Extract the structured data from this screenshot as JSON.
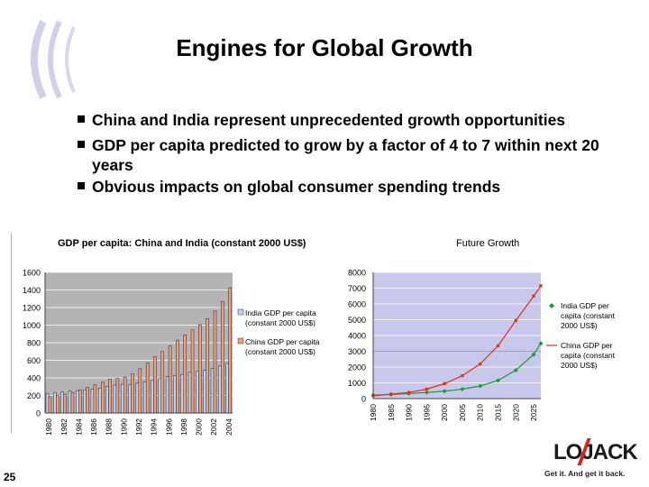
{
  "title": "Engines for Global Growth",
  "bullets": [
    "China and India represent unprecedented growth opportunities",
    "GDP per capita predicted to grow by a factor of 4 to 7 within next 20 years",
    "Obvious impacts on global consumer spending trends"
  ],
  "page_number": "25",
  "logo": {
    "wordmark": "LOJACK",
    "tagline": "Get it. And get it back."
  },
  "chart_data": [
    {
      "type": "bar",
      "title": "GDP per capita: China and India (constant 2000 US$)",
      "x": [
        1980,
        1981,
        1982,
        1983,
        1984,
        1985,
        1986,
        1987,
        1988,
        1989,
        1990,
        1991,
        1992,
        1993,
        1994,
        1995,
        1996,
        1997,
        1998,
        1999,
        2000,
        2001,
        2002,
        2003,
        2004
      ],
      "xticks": [
        "1980",
        "1982",
        "1984",
        "1986",
        "1988",
        "1990",
        "1992",
        "1994",
        "1996",
        "1998",
        "2000",
        "2002",
        "2004"
      ],
      "yticks": [
        "0",
        "200",
        "400",
        "600",
        "800",
        "1000",
        "1200",
        "1400",
        "1600"
      ],
      "ylim": [
        0,
        1600
      ],
      "series": [
        {
          "name": "India GDP per capita (constant 2000 US$)",
          "color": "#c8d0e8",
          "values": [
            225,
            235,
            240,
            250,
            255,
            265,
            272,
            285,
            305,
            318,
            328,
            322,
            340,
            352,
            370,
            392,
            415,
            425,
            440,
            465,
            475,
            490,
            505,
            535,
            565
          ]
        },
        {
          "name": "China GDP per capita (constant 2000 US$)",
          "color": "#f0a080",
          "values": [
            185,
            200,
            215,
            235,
            265,
            295,
            320,
            350,
            385,
            395,
            410,
            445,
            505,
            570,
            640,
            700,
            765,
            830,
            890,
            945,
            1005,
            1075,
            1160,
            1270,
            1425
          ]
        }
      ],
      "legend_position": "right",
      "background": "#b4b4b4"
    },
    {
      "type": "line",
      "title": "Future Growth",
      "x": [
        1980,
        1985,
        1990,
        1995,
        2000,
        2005,
        2010,
        2015,
        2020,
        2025,
        2027
      ],
      "xticks": [
        "1980",
        "1985",
        "1990",
        "1995",
        "2000",
        "2005",
        "2010",
        "2015",
        "2020",
        "2025"
      ],
      "yticks": [
        "0",
        "1000",
        "2000",
        "3000",
        "4000",
        "5000",
        "6000",
        "7000",
        "8000"
      ],
      "ylim": [
        0,
        8000
      ],
      "series": [
        {
          "name": "India GDP per capita (constant 2000 US$)",
          "color": "#1a9a3a",
          "marker": "diamond",
          "values": [
            220,
            260,
            320,
            390,
            470,
            600,
            800,
            1150,
            1800,
            2800,
            3500
          ]
        },
        {
          "name": "China GDP per capita (constant 2000 US$)",
          "color": "#e03010",
          "marker": "square",
          "values": [
            180,
            290,
            390,
            600,
            950,
            1450,
            2200,
            3350,
            4950,
            6500,
            7150
          ]
        }
      ],
      "legend_position": "right",
      "background": "#c8c8ec"
    }
  ]
}
